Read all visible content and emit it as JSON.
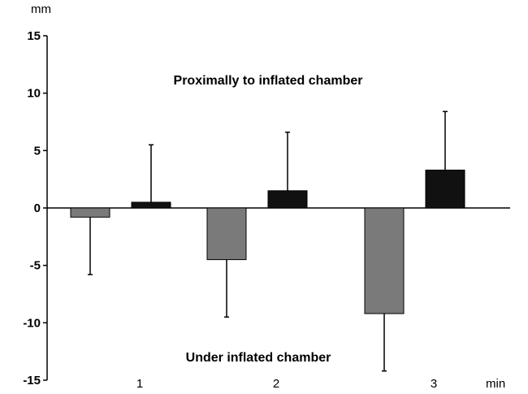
{
  "chart_data": {
    "type": "bar",
    "title": "",
    "ylabel": "mm",
    "xlabel": "min",
    "ylim": [
      -15,
      15
    ],
    "yticks": [
      15,
      10,
      5,
      0,
      -5,
      -10,
      -15
    ],
    "categories": [
      "1",
      "2",
      "3"
    ],
    "series": [
      {
        "color": "#7a7a7a",
        "values": [
          -0.8,
          -4.5,
          -9.2
        ],
        "error": [
          5.0,
          5.0,
          5.0
        ]
      },
      {
        "color": "#111111",
        "values": [
          0.5,
          1.5,
          3.3
        ],
        "error": [
          5.0,
          5.1,
          5.1
        ]
      }
    ],
    "annotations": {
      "upper": "Proximally to inflated chamber",
      "lower": "Under inflated  chamber"
    }
  }
}
